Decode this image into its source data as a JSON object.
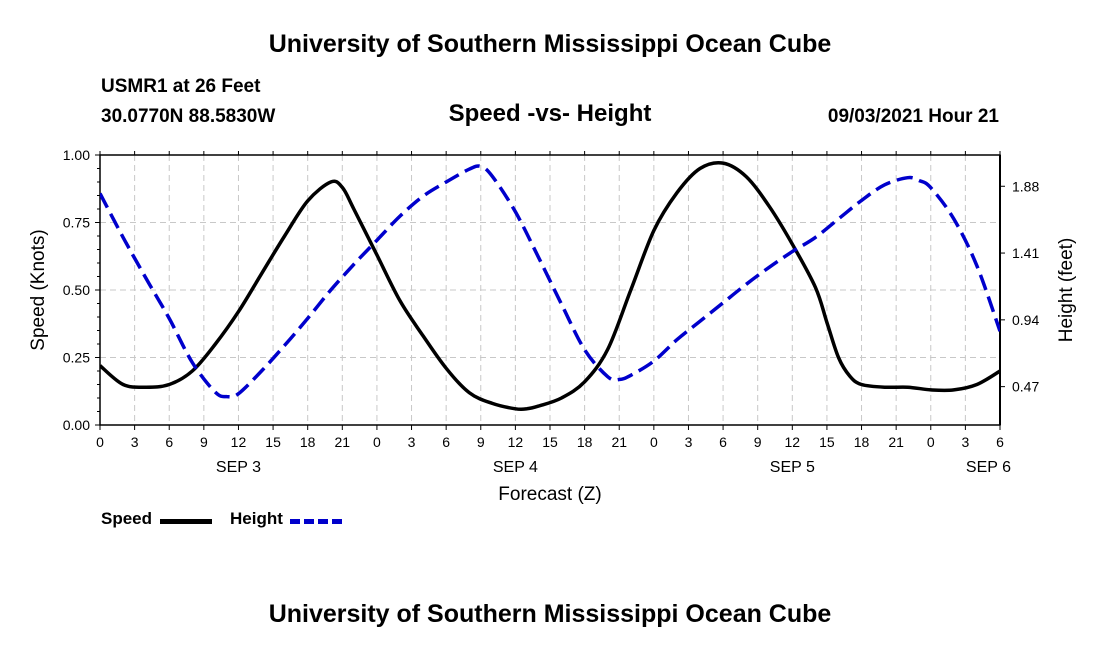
{
  "header": {
    "title_top": "University of Southern Mississippi Ocean Cube",
    "station": "USMR1 at 26 Feet",
    "coords": "30.0770N  88.5830W",
    "chart_title": "Speed -vs- Height",
    "timestamp": "09/03/2021 Hour 21",
    "title_bottom": "University of Southern Mississippi Ocean Cube"
  },
  "legend": {
    "speed_label": "Speed",
    "height_label": "Height"
  },
  "colors": {
    "speed": "#000000",
    "height": "#0000cc",
    "grid": "#c8c8c8"
  },
  "chart_data": {
    "type": "line",
    "title": "Speed -vs- Height",
    "xlabel": "Forecast (Z)",
    "ylabel": "Speed (Knots)",
    "ylabel_right": "Height (feet)",
    "x_ticks": [
      "0",
      "3",
      "6",
      "9",
      "12",
      "15",
      "18",
      "21",
      "0",
      "3",
      "6",
      "9",
      "12",
      "15",
      "18",
      "21",
      "0",
      "3",
      "6",
      "9",
      "12",
      "15",
      "18",
      "21",
      "0",
      "3",
      "6"
    ],
    "x_range_hours": [
      0,
      78
    ],
    "day_labels": [
      {
        "label": "SEP 3",
        "hour": 12
      },
      {
        "label": "SEP 4",
        "hour": 36
      },
      {
        "label": "SEP 5",
        "hour": 60
      },
      {
        "label": "SEP 6",
        "hour": 77
      }
    ],
    "ylim": [
      0,
      1.0
    ],
    "y_ticks": [
      "0.00",
      "0.25",
      "0.50",
      "0.75",
      "1.00"
    ],
    "y_tick_values": [
      0,
      0.25,
      0.5,
      0.75,
      1.0
    ],
    "ylim_right": [
      0.2,
      2.1
    ],
    "y_ticks_right": [
      "0.47",
      "0.94",
      "1.41",
      "1.88"
    ],
    "y_tick_values_right": [
      0.47,
      0.94,
      1.41,
      1.88
    ],
    "series": [
      {
        "name": "Speed",
        "axis": "left",
        "style": "solid",
        "x": [
          0,
          2,
          4,
          6,
          8,
          10,
          12,
          14,
          16,
          18,
          20,
          21,
          22,
          24,
          26,
          28,
          30,
          32,
          34,
          36,
          37,
          38,
          40,
          42,
          44,
          46,
          48,
          50,
          52,
          54,
          56,
          58,
          60,
          62,
          63,
          64,
          65,
          66,
          68,
          70,
          72,
          74,
          76,
          78
        ],
        "values": [
          0.22,
          0.15,
          0.14,
          0.15,
          0.2,
          0.3,
          0.42,
          0.56,
          0.7,
          0.83,
          0.9,
          0.88,
          0.8,
          0.63,
          0.46,
          0.33,
          0.21,
          0.12,
          0.08,
          0.06,
          0.06,
          0.07,
          0.1,
          0.16,
          0.28,
          0.5,
          0.72,
          0.86,
          0.95,
          0.97,
          0.92,
          0.81,
          0.67,
          0.51,
          0.38,
          0.25,
          0.18,
          0.15,
          0.14,
          0.14,
          0.13,
          0.13,
          0.15,
          0.2
        ]
      },
      {
        "name": "Height",
        "axis": "right",
        "style": "dashed",
        "x": [
          0,
          2,
          4,
          6,
          8,
          10,
          11,
          12,
          14,
          16,
          18,
          20,
          22,
          24,
          26,
          28,
          30,
          32,
          33,
          34,
          36,
          38,
          40,
          42,
          44,
          45,
          46,
          48,
          50,
          52,
          54,
          56,
          58,
          60,
          62,
          64,
          66,
          68,
          70,
          71,
          72,
          74,
          76,
          78
        ],
        "values": [
          1.83,
          1.52,
          1.23,
          0.95,
          0.64,
          0.43,
          0.4,
          0.42,
          0.58,
          0.76,
          0.95,
          1.15,
          1.33,
          1.5,
          1.67,
          1.81,
          1.91,
          2.0,
          2.02,
          1.95,
          1.7,
          1.38,
          1.05,
          0.73,
          0.54,
          0.52,
          0.55,
          0.65,
          0.8,
          0.93,
          1.06,
          1.19,
          1.31,
          1.42,
          1.52,
          1.65,
          1.78,
          1.89,
          1.94,
          1.92,
          1.87,
          1.65,
          1.32,
          0.86
        ]
      }
    ]
  }
}
